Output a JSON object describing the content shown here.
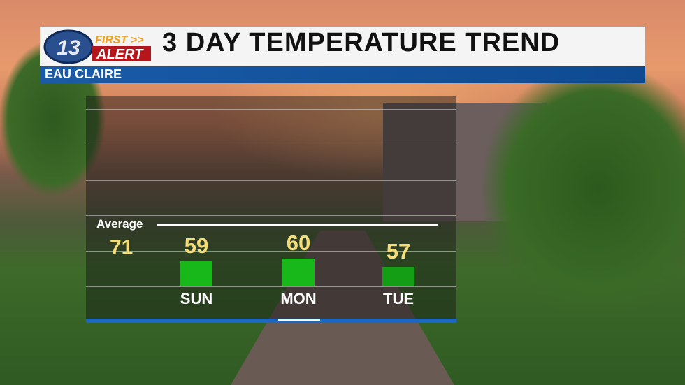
{
  "header": {
    "title": "3 DAY TEMPERATURE TREND",
    "location": "EAU CLAIRE",
    "logo_number": "13",
    "logo_line1": "FIRST >>",
    "logo_line2": "ALERT"
  },
  "colors": {
    "bar": "#19b81a",
    "value": "#f5dd78",
    "accent": "#1a5aa8"
  },
  "chart_data": {
    "type": "bar",
    "categories": [
      "SUN",
      "MON",
      "TUE"
    ],
    "values": [
      59,
      60,
      57
    ],
    "average": {
      "label": "Average",
      "value": 71
    },
    "grid": true
  }
}
